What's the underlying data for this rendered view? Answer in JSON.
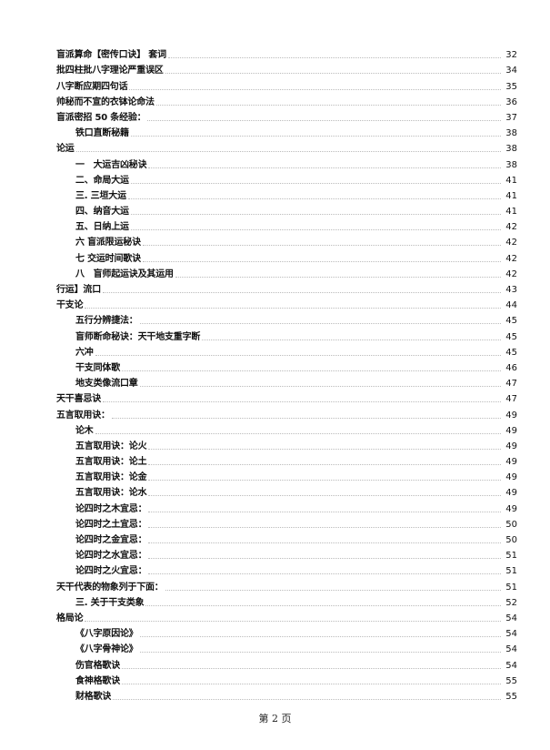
{
  "toc": [
    {
      "title": "盲派算命【密传口诀】 套词",
      "page": "32",
      "level": 0
    },
    {
      "title": "批四柱批八字理论严重误区",
      "page": "34",
      "level": 0
    },
    {
      "title": "八字断应期四句话",
      "page": "35",
      "level": 0
    },
    {
      "title": "帅秘而不宣的衣钵论命法",
      "page": "36",
      "level": 0
    },
    {
      "title": "盲派密招 50 条经验：",
      "page": "37",
      "level": 0
    },
    {
      "title": "铁口直断秘籍",
      "page": "38",
      "level": 1
    },
    {
      "title": "论运",
      "page": "38",
      "level": 0
    },
    {
      "title": "一　大运吉凶秘诀",
      "page": "38",
      "level": 1
    },
    {
      "title": "二、命局大运",
      "page": "41",
      "level": 1
    },
    {
      "title": "三. 三垣大运",
      "page": "41",
      "level": 1
    },
    {
      "title": "四、纳音大运",
      "page": "41",
      "level": 1
    },
    {
      "title": "五、日纳上运",
      "page": "42",
      "level": 1
    },
    {
      "title": "六 盲派限运秘诀",
      "page": "42",
      "level": 1
    },
    {
      "title": "七 交运时间歌诀",
      "page": "42",
      "level": 1
    },
    {
      "title": "八　盲师起运诀及其运用",
      "page": "42",
      "level": 1
    },
    {
      "title": "行运】流口",
      "page": "43",
      "level": 0
    },
    {
      "title": "干支论",
      "page": "44",
      "level": 0
    },
    {
      "title": "五行分辨捷法：",
      "page": "45",
      "level": 1
    },
    {
      "title": "盲师断命秘诀：天干地支重字断",
      "page": "45",
      "level": 1
    },
    {
      "title": "六冲",
      "page": "45",
      "level": 1
    },
    {
      "title": "干支同体歌",
      "page": "46",
      "level": 1
    },
    {
      "title": "地支类像流口章",
      "page": "47",
      "level": 1
    },
    {
      "title": "天干喜忌诀",
      "page": "47",
      "level": 0
    },
    {
      "title": "五言取用诀：",
      "page": "49",
      "level": 0
    },
    {
      "title": "论木",
      "page": "49",
      "level": 1
    },
    {
      "title": "五言取用诀：论火",
      "page": "49",
      "level": 1
    },
    {
      "title": "五言取用诀：论土",
      "page": "49",
      "level": 1
    },
    {
      "title": "五言取用诀：论金",
      "page": "49",
      "level": 1
    },
    {
      "title": "五言取用诀：论水",
      "page": "49",
      "level": 1
    },
    {
      "title": "论四时之木宜忌：",
      "page": "49",
      "level": 1
    },
    {
      "title": "论四时之土宜忌：",
      "page": "50",
      "level": 1
    },
    {
      "title": "论四时之金宜忌：",
      "page": "50",
      "level": 1
    },
    {
      "title": "论四时之水宜忌：",
      "page": "51",
      "level": 1
    },
    {
      "title": "论四时之火宜忌：",
      "page": "51",
      "level": 1
    },
    {
      "title": "天干代表的物象列于下面：",
      "page": "51",
      "level": 0
    },
    {
      "title": "三. 关于干支类象",
      "page": "52",
      "level": 1
    },
    {
      "title": "格局论",
      "page": "54",
      "level": 0
    },
    {
      "title": "《八字原因论》",
      "page": "54",
      "level": 1
    },
    {
      "title": "《八字骨神论》",
      "page": "54",
      "level": 1
    },
    {
      "title": "伤官格歌诀",
      "page": "54",
      "level": 1
    },
    {
      "title": "食神格歌诀",
      "page": "55",
      "level": 1
    },
    {
      "title": "财格歌诀",
      "page": "55",
      "level": 1
    }
  ],
  "footer": {
    "page_label": "第 2 页"
  }
}
